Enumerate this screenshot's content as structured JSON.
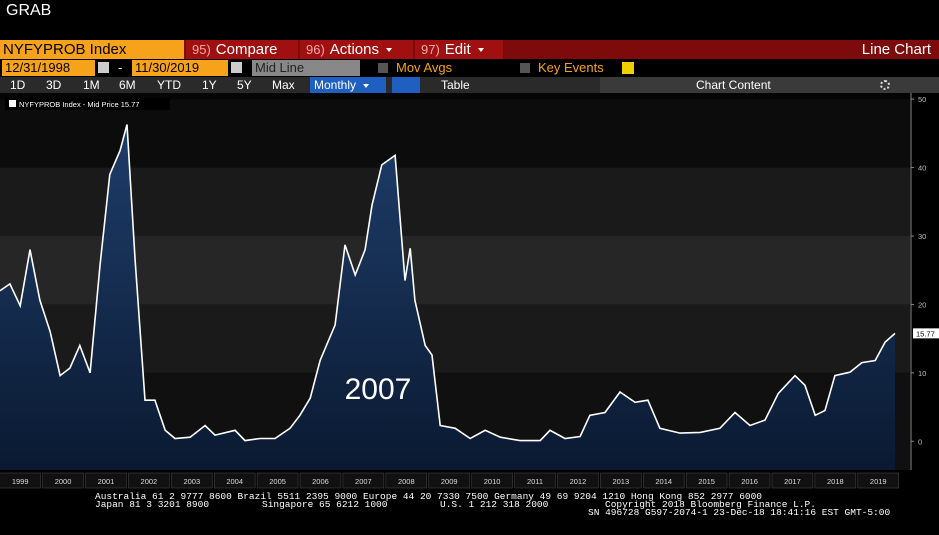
{
  "header": {
    "title": "GRAB"
  },
  "toolbar": {
    "ticker": "NYFYPROB Index",
    "menus": [
      {
        "num": "95)",
        "label": "Compare"
      },
      {
        "num": "96)",
        "label": "Actions"
      },
      {
        "num": "97)",
        "label": "Edit"
      }
    ],
    "view": "Line Chart",
    "start_date": "12/31/1998",
    "separator": "-",
    "end_date": "11/30/2019",
    "line_mode": "Mid Line",
    "mov_avgs": "Mov Avgs",
    "key_events": "Key Events",
    "ranges": [
      "1D",
      "3D",
      "1M",
      "6M",
      "YTD",
      "1Y",
      "5Y",
      "Max"
    ],
    "frequency": "Monthly",
    "table": "Table",
    "chart_content": "Chart Content"
  },
  "chart_data": {
    "type": "line",
    "legend": "NYFYPROB Index - Mid Price 15.77",
    "annotation": "2007",
    "color": "#ffffff",
    "x": [
      1999.03,
      1999.26,
      1999.5,
      1999.73,
      1999.96,
      2000.2,
      2000.43,
      2000.66,
      2000.89,
      2001.13,
      2001.36,
      2001.59,
      2001.83,
      2001.99,
      2002.18,
      2002.41,
      2002.64,
      2002.88,
      2003.11,
      2003.46,
      2003.81,
      2004.04,
      2004.51,
      2004.74,
      2005.09,
      2005.44,
      2005.79,
      2006.02,
      2006.26,
      2006.49,
      2006.84,
      2007.07,
      2007.31,
      2007.54,
      2007.7,
      2007.93,
      2008.24,
      2008.47,
      2008.59,
      2008.7,
      2008.94,
      2009.1,
      2009.29,
      2009.64,
      2009.99,
      2010.34,
      2010.69,
      2011.15,
      2011.62,
      2011.85,
      2012.2,
      2012.55,
      2012.78,
      2013.13,
      2013.48,
      2013.83,
      2014.13,
      2014.41,
      2014.88,
      2015.35,
      2015.81,
      2016.16,
      2016.51,
      2016.86,
      2017.17,
      2017.56,
      2017.79,
      2018.03,
      2018.26,
      2018.49,
      2018.84,
      2019.12,
      2019.43,
      2019.66,
      2019.89
    ],
    "values": [
      22,
      23,
      19.8,
      28,
      20.6,
      16,
      9.6,
      10.7,
      14,
      10,
      25.7,
      39,
      42.5,
      46.3,
      26.5,
      6,
      6,
      1.6,
      0.4,
      0.6,
      2.3,
      0.9,
      1.6,
      0.1,
      0.4,
      0.4,
      1.9,
      3.8,
      6.3,
      11.8,
      17,
      28.7,
      24.3,
      28,
      34.5,
      40.4,
      41.8,
      23.5,
      28.2,
      20.6,
      14,
      12.6,
      2.3,
      1.9,
      0.4,
      1.6,
      0.6,
      0.1,
      0.1,
      1.6,
      0.4,
      0.7,
      3.8,
      4.2,
      7.2,
      5.7,
      6,
      1.9,
      1.2,
      1.3,
      1.9,
      4.2,
      2.3,
      3.1,
      7,
      9.6,
      8.2,
      3.8,
      4.5,
      9.6,
      10.1,
      11.5,
      11.8,
      14.5,
      15.77
    ],
    "value_labels": [
      null,
      null,
      null,
      null,
      null,
      null,
      null,
      null,
      null,
      null,
      null,
      null,
      null,
      null,
      null,
      null,
      null,
      null,
      null,
      null,
      null,
      null,
      null,
      null,
      null,
      null,
      null,
      null,
      null,
      null,
      null,
      null,
      null,
      null,
      null,
      null,
      null,
      null,
      null,
      null,
      null,
      null,
      null,
      null,
      null,
      null,
      null,
      null,
      null,
      null,
      null,
      null,
      null,
      null,
      null,
      null,
      null,
      null,
      null,
      null,
      null,
      null,
      null,
      null,
      null,
      null,
      null,
      null,
      null,
      null,
      null,
      null,
      null,
      null,
      "15.77"
    ],
    "xlim": [
      1999.03,
      2020.24
    ],
    "xticks": [
      {
        "value": 1999.5,
        "label": "1999"
      },
      {
        "value": 2000.5,
        "label": "2000"
      },
      {
        "value": 2001.5,
        "label": "2001"
      },
      {
        "value": 2002.5,
        "label": "2002"
      },
      {
        "value": 2003.5,
        "label": "2003"
      },
      {
        "value": 2004.5,
        "label": "2004"
      },
      {
        "value": 2005.5,
        "label": "2005"
      },
      {
        "value": 2006.5,
        "label": "2006"
      },
      {
        "value": 2007.5,
        "label": "2007"
      },
      {
        "value": 2008.5,
        "label": "2008"
      },
      {
        "value": 2009.5,
        "label": "2009"
      },
      {
        "value": 2010.5,
        "label": "2010"
      },
      {
        "value": 2011.5,
        "label": "2011"
      },
      {
        "value": 2012.5,
        "label": "2012"
      },
      {
        "value": 2013.5,
        "label": "2013"
      },
      {
        "value": 2014.5,
        "label": "2014"
      },
      {
        "value": 2015.5,
        "label": "2015"
      },
      {
        "value": 2016.5,
        "label": "2016"
      },
      {
        "value": 2017.5,
        "label": "2017"
      },
      {
        "value": 2018.5,
        "label": "2018"
      },
      {
        "value": 2019.5,
        "label": "2019"
      }
    ],
    "ylim": [
      -4.2,
      50.9
    ],
    "yticks": [
      0,
      10,
      20,
      30,
      40,
      50
    ]
  },
  "footer": {
    "line1": "Australia 61 2 9777 8600 Brazil 5511 2395 9000 Europe 44 20 7330 7500 Germany 49 69 9204 1210 Hong Kong 852 2977 6000",
    "japan": "Japan 81 3 3201 8900",
    "singapore": "Singapore 65 6212 1000",
    "us": "U.S. 1 212 318 2000",
    "copyright": "Copyright 2018 Bloomberg Finance L.P.",
    "stamp": "SN 496728 G597-2074-1 23-Dec-18 18:41:16 EST  GMT-5:00"
  }
}
